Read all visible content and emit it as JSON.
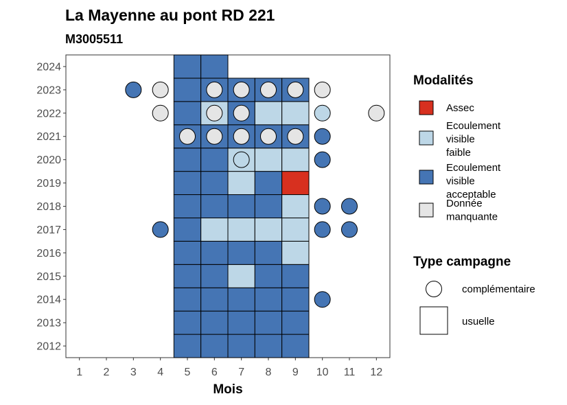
{
  "chart_data": {
    "type": "heatmap",
    "title": "La Mayenne au pont RD 221",
    "subtitle": "M3005511",
    "xlabel": "Mois",
    "ylabel": "",
    "x_ticks": [
      "1",
      "2",
      "3",
      "4",
      "5",
      "6",
      "7",
      "8",
      "9",
      "10",
      "11",
      "12"
    ],
    "y_ticks": [
      "2012",
      "2013",
      "2014",
      "2015",
      "2016",
      "2017",
      "2018",
      "2019",
      "2020",
      "2021",
      "2022",
      "2023",
      "2024"
    ],
    "xlim": [
      0.5,
      12.5
    ],
    "ylim": [
      2011.5,
      2024.5
    ],
    "grid": false,
    "legend_position": "right",
    "legend_modalites": {
      "title": "Modalités",
      "items": [
        {
          "key": "assec",
          "label_lines": [
            "Assec"
          ],
          "color": "#d7301f"
        },
        {
          "key": "faible",
          "label_lines": [
            "Ecoulement",
            "visible",
            "faible"
          ],
          "color": "#bdd7e7"
        },
        {
          "key": "acceptable",
          "label_lines": [
            "Ecoulement",
            "visible",
            "acceptable"
          ],
          "color": "#4575b4"
        },
        {
          "key": "manquante",
          "label_lines": [
            "Donnée",
            "manquante"
          ],
          "color": "#e5e5e5"
        }
      ]
    },
    "legend_campagne": {
      "title": "Type campagne",
      "items": [
        {
          "key": "complementaire",
          "label": "complémentaire",
          "shape": "circle"
        },
        {
          "key": "usuelle",
          "label": "usuelle",
          "shape": "square"
        }
      ]
    },
    "usuelle": [
      {
        "year": 2012,
        "month": 5,
        "mod": "acceptable"
      },
      {
        "year": 2012,
        "month": 6,
        "mod": "acceptable"
      },
      {
        "year": 2012,
        "month": 7,
        "mod": "acceptable"
      },
      {
        "year": 2012,
        "month": 8,
        "mod": "acceptable"
      },
      {
        "year": 2012,
        "month": 9,
        "mod": "acceptable"
      },
      {
        "year": 2013,
        "month": 5,
        "mod": "acceptable"
      },
      {
        "year": 2013,
        "month": 6,
        "mod": "acceptable"
      },
      {
        "year": 2013,
        "month": 7,
        "mod": "acceptable"
      },
      {
        "year": 2013,
        "month": 8,
        "mod": "acceptable"
      },
      {
        "year": 2013,
        "month": 9,
        "mod": "acceptable"
      },
      {
        "year": 2014,
        "month": 5,
        "mod": "acceptable"
      },
      {
        "year": 2014,
        "month": 6,
        "mod": "acceptable"
      },
      {
        "year": 2014,
        "month": 7,
        "mod": "acceptable"
      },
      {
        "year": 2014,
        "month": 8,
        "mod": "acceptable"
      },
      {
        "year": 2014,
        "month": 9,
        "mod": "acceptable"
      },
      {
        "year": 2015,
        "month": 5,
        "mod": "acceptable"
      },
      {
        "year": 2015,
        "month": 6,
        "mod": "acceptable"
      },
      {
        "year": 2015,
        "month": 7,
        "mod": "faible"
      },
      {
        "year": 2015,
        "month": 8,
        "mod": "acceptable"
      },
      {
        "year": 2015,
        "month": 9,
        "mod": "acceptable"
      },
      {
        "year": 2016,
        "month": 5,
        "mod": "acceptable"
      },
      {
        "year": 2016,
        "month": 6,
        "mod": "acceptable"
      },
      {
        "year": 2016,
        "month": 7,
        "mod": "acceptable"
      },
      {
        "year": 2016,
        "month": 8,
        "mod": "acceptable"
      },
      {
        "year": 2016,
        "month": 9,
        "mod": "faible"
      },
      {
        "year": 2017,
        "month": 5,
        "mod": "acceptable"
      },
      {
        "year": 2017,
        "month": 6,
        "mod": "faible"
      },
      {
        "year": 2017,
        "month": 7,
        "mod": "faible"
      },
      {
        "year": 2017,
        "month": 8,
        "mod": "faible"
      },
      {
        "year": 2017,
        "month": 9,
        "mod": "faible"
      },
      {
        "year": 2018,
        "month": 5,
        "mod": "acceptable"
      },
      {
        "year": 2018,
        "month": 6,
        "mod": "acceptable"
      },
      {
        "year": 2018,
        "month": 7,
        "mod": "acceptable"
      },
      {
        "year": 2018,
        "month": 8,
        "mod": "acceptable"
      },
      {
        "year": 2018,
        "month": 9,
        "mod": "faible"
      },
      {
        "year": 2019,
        "month": 5,
        "mod": "acceptable"
      },
      {
        "year": 2019,
        "month": 6,
        "mod": "acceptable"
      },
      {
        "year": 2019,
        "month": 7,
        "mod": "faible"
      },
      {
        "year": 2019,
        "month": 8,
        "mod": "acceptable"
      },
      {
        "year": 2019,
        "month": 9,
        "mod": "assec"
      },
      {
        "year": 2020,
        "month": 5,
        "mod": "acceptable"
      },
      {
        "year": 2020,
        "month": 6,
        "mod": "acceptable"
      },
      {
        "year": 2020,
        "month": 7,
        "mod": "faible"
      },
      {
        "year": 2020,
        "month": 8,
        "mod": "faible"
      },
      {
        "year": 2020,
        "month": 9,
        "mod": "faible"
      },
      {
        "year": 2021,
        "month": 5,
        "mod": "acceptable"
      },
      {
        "year": 2021,
        "month": 6,
        "mod": "acceptable"
      },
      {
        "year": 2021,
        "month": 7,
        "mod": "acceptable"
      },
      {
        "year": 2021,
        "month": 8,
        "mod": "acceptable"
      },
      {
        "year": 2021,
        "month": 9,
        "mod": "acceptable"
      },
      {
        "year": 2022,
        "month": 5,
        "mod": "acceptable"
      },
      {
        "year": 2022,
        "month": 6,
        "mod": "faible"
      },
      {
        "year": 2022,
        "month": 7,
        "mod": "acceptable"
      },
      {
        "year": 2022,
        "month": 8,
        "mod": "faible"
      },
      {
        "year": 2022,
        "month": 9,
        "mod": "faible"
      },
      {
        "year": 2023,
        "month": 5,
        "mod": "acceptable"
      },
      {
        "year": 2023,
        "month": 6,
        "mod": "acceptable"
      },
      {
        "year": 2023,
        "month": 7,
        "mod": "acceptable"
      },
      {
        "year": 2023,
        "month": 8,
        "mod": "acceptable"
      },
      {
        "year": 2023,
        "month": 9,
        "mod": "acceptable"
      },
      {
        "year": 2024,
        "month": 5,
        "mod": "acceptable"
      },
      {
        "year": 2024,
        "month": 6,
        "mod": "acceptable"
      }
    ],
    "complementaire": [
      {
        "year": 2023,
        "month": 3,
        "mod": "acceptable"
      },
      {
        "year": 2023,
        "month": 4,
        "mod": "manquante"
      },
      {
        "year": 2023,
        "month": 6,
        "mod": "manquante"
      },
      {
        "year": 2023,
        "month": 7,
        "mod": "manquante"
      },
      {
        "year": 2023,
        "month": 8,
        "mod": "manquante"
      },
      {
        "year": 2023,
        "month": 9,
        "mod": "manquante"
      },
      {
        "year": 2023,
        "month": 10,
        "mod": "manquante"
      },
      {
        "year": 2022,
        "month": 4,
        "mod": "manquante"
      },
      {
        "year": 2022,
        "month": 6,
        "mod": "manquante"
      },
      {
        "year": 2022,
        "month": 7,
        "mod": "manquante"
      },
      {
        "year": 2022,
        "month": 10,
        "mod": "faible"
      },
      {
        "year": 2022,
        "month": 12,
        "mod": "manquante"
      },
      {
        "year": 2021,
        "month": 5,
        "mod": "manquante"
      },
      {
        "year": 2021,
        "month": 6,
        "mod": "manquante"
      },
      {
        "year": 2021,
        "month": 7,
        "mod": "manquante"
      },
      {
        "year": 2021,
        "month": 8,
        "mod": "manquante"
      },
      {
        "year": 2021,
        "month": 9,
        "mod": "manquante"
      },
      {
        "year": 2021,
        "month": 10,
        "mod": "acceptable"
      },
      {
        "year": 2020,
        "month": 7,
        "mod": "faible"
      },
      {
        "year": 2020,
        "month": 10,
        "mod": "acceptable"
      },
      {
        "year": 2018,
        "month": 10,
        "mod": "acceptable"
      },
      {
        "year": 2018,
        "month": 11,
        "mod": "acceptable"
      },
      {
        "year": 2017,
        "month": 4,
        "mod": "acceptable"
      },
      {
        "year": 2017,
        "month": 10,
        "mod": "acceptable"
      },
      {
        "year": 2017,
        "month": 11,
        "mod": "acceptable"
      },
      {
        "year": 2014,
        "month": 10,
        "mod": "acceptable"
      }
    ]
  }
}
